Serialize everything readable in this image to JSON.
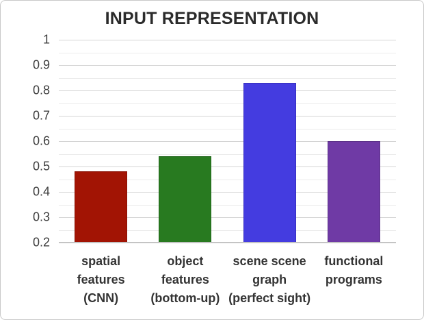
{
  "window": {
    "background": "#ffffff",
    "border_color": "#c9c9c9"
  },
  "chart_data": {
    "type": "bar",
    "title": "INPUT REPRESENTATION",
    "categories": [
      "spatial\nfeatures\n(CNN)",
      "object\nfeatures\n(bottom-up)",
      "scene scene\ngraph\n(perfect sight)",
      "functional\nprograms"
    ],
    "values": [
      0.48,
      0.54,
      0.83,
      0.6
    ],
    "bar_colors": [
      "#a21404",
      "#287a20",
      "#443ce0",
      "#6f3aa5"
    ],
    "bar_border_colors": [
      "#8a1003",
      "#20661a",
      "#372fc0",
      "#5c3289"
    ],
    "xlabel": "",
    "ylabel": "",
    "ylim": [
      0.2,
      1.0
    ],
    "yticks": [
      1,
      0.9,
      0.8,
      0.7,
      0.6,
      0.5,
      0.4,
      0.3,
      0.2
    ],
    "ytick_labels": [
      "1",
      "0.9",
      "0.8",
      "0.7",
      "0.6",
      "0.5",
      "0.4",
      "0.3",
      "0.2"
    ],
    "minor_grid_step": 0.05,
    "grid": "horizontal",
    "legend": "none"
  }
}
